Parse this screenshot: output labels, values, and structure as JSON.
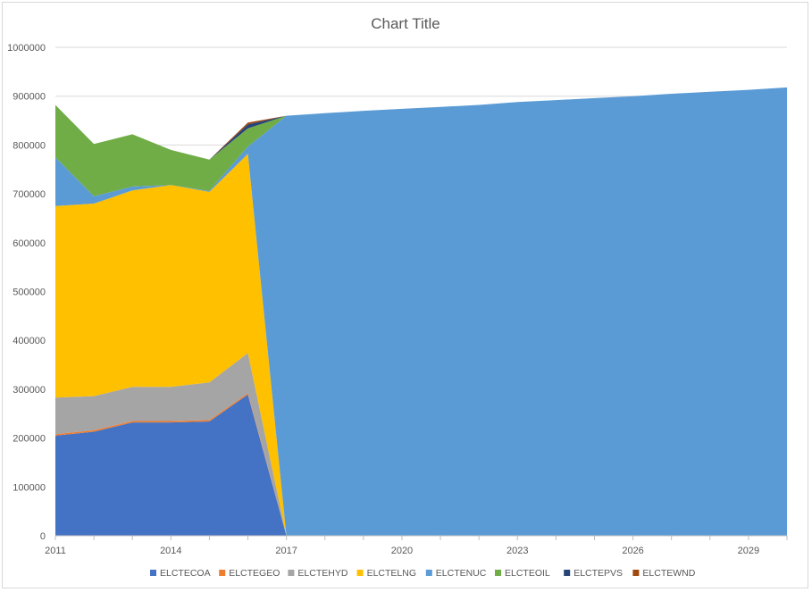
{
  "chart_data": {
    "type": "area",
    "stacked": true,
    "title": "Chart Title",
    "xlabel": "",
    "ylabel": "",
    "ylim": [
      0,
      1000000
    ],
    "yticks": [
      0,
      100000,
      200000,
      300000,
      400000,
      500000,
      600000,
      700000,
      800000,
      900000,
      1000000
    ],
    "grid": true,
    "legend_position": "bottom",
    "x": [
      2011,
      2012,
      2013,
      2014,
      2015,
      2016,
      2017,
      2018,
      2019,
      2020,
      2021,
      2022,
      2023,
      2024,
      2025,
      2026,
      2027,
      2028,
      2029,
      2030
    ],
    "x_tick_labels": [
      "2011",
      "2014",
      "2017",
      "2020",
      "2023",
      "2026",
      "2029"
    ],
    "series": [
      {
        "name": "ELCTECOA",
        "color": "#4472C4",
        "values": [
          205000,
          213000,
          232000,
          232000,
          234000,
          289000,
          0,
          0,
          0,
          0,
          0,
          0,
          0,
          0,
          0,
          0,
          0,
          0,
          0,
          0
        ]
      },
      {
        "name": "ELCTEGEO",
        "color": "#ED7D31",
        "values": [
          3000,
          3000,
          3000,
          3000,
          3000,
          3000,
          0,
          0,
          0,
          0,
          0,
          0,
          0,
          0,
          0,
          0,
          0,
          0,
          0,
          0
        ]
      },
      {
        "name": "ELCTEHYD",
        "color": "#A5A5A5",
        "values": [
          75000,
          70000,
          70000,
          70000,
          77000,
          82000,
          0,
          0,
          0,
          0,
          0,
          0,
          0,
          0,
          0,
          0,
          0,
          0,
          0,
          0
        ]
      },
      {
        "name": "ELCTELNG",
        "color": "#FFC000",
        "values": [
          392000,
          394000,
          402000,
          413000,
          390000,
          408000,
          0,
          0,
          0,
          0,
          0,
          0,
          0,
          0,
          0,
          0,
          0,
          0,
          0,
          0
        ]
      },
      {
        "name": "ELCTENUC",
        "color": "#5B9BD5",
        "values": [
          100000,
          15000,
          8000,
          0,
          2000,
          15000,
          860000,
          865000,
          870000,
          874000,
          878000,
          882000,
          888000,
          892000,
          896000,
          900000,
          905000,
          909000,
          913000,
          918000
        ]
      },
      {
        "name": "ELCTEOIL",
        "color": "#70AD47",
        "values": [
          107000,
          107000,
          107000,
          72000,
          64000,
          37000,
          0,
          0,
          0,
          0,
          0,
          0,
          0,
          0,
          0,
          0,
          0,
          0,
          0,
          0
        ]
      },
      {
        "name": "ELCTEPVS",
        "color": "#264478",
        "values": [
          0,
          0,
          0,
          0,
          0,
          8000,
          0,
          0,
          0,
          0,
          0,
          0,
          0,
          0,
          0,
          0,
          0,
          0,
          0,
          0
        ]
      },
      {
        "name": "ELCTEWND",
        "color": "#9E480E",
        "values": [
          0,
          0,
          0,
          0,
          0,
          4000,
          0,
          0,
          0,
          0,
          0,
          0,
          0,
          0,
          0,
          0,
          0,
          0,
          0,
          0
        ]
      }
    ]
  }
}
